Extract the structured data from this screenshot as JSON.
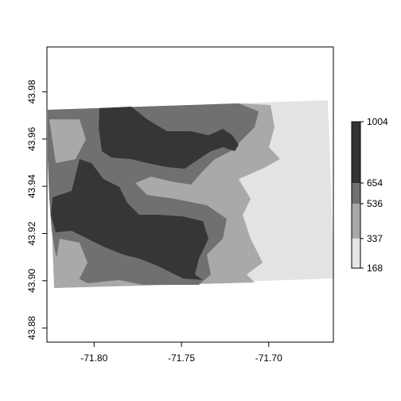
{
  "map": {
    "x_ticks": [
      {
        "value": -71.8,
        "label": "-71.80"
      },
      {
        "value": -71.75,
        "label": "-71.75"
      },
      {
        "value": -71.7,
        "label": "-71.70"
      }
    ],
    "y_ticks": [
      {
        "value": 43.88,
        "label": "43.88"
      },
      {
        "value": 43.9,
        "label": "43.90"
      },
      {
        "value": 43.92,
        "label": "43.92"
      },
      {
        "value": 43.94,
        "label": "43.94"
      },
      {
        "value": 43.96,
        "label": "43.96"
      },
      {
        "value": 43.98,
        "label": "43.98"
      }
    ],
    "xlim": [
      -71.827,
      -71.663
    ],
    "ylim": [
      43.874,
      43.999
    ]
  },
  "legend": {
    "breaks": [
      {
        "value": 168,
        "label": "168"
      },
      {
        "value": 337,
        "label": "337"
      },
      {
        "value": 536,
        "label": "536"
      },
      {
        "value": 654,
        "label": "654"
      },
      {
        "value": 1004,
        "label": "1004"
      }
    ],
    "colors": [
      "#e6e6e6",
      "#a8a8a8",
      "#707070",
      "#333333"
    ]
  },
  "colors": {
    "class1": "#e3e3e3",
    "class2": "#a9a9a9",
    "class3": "#707070",
    "class4": "#363636"
  }
}
